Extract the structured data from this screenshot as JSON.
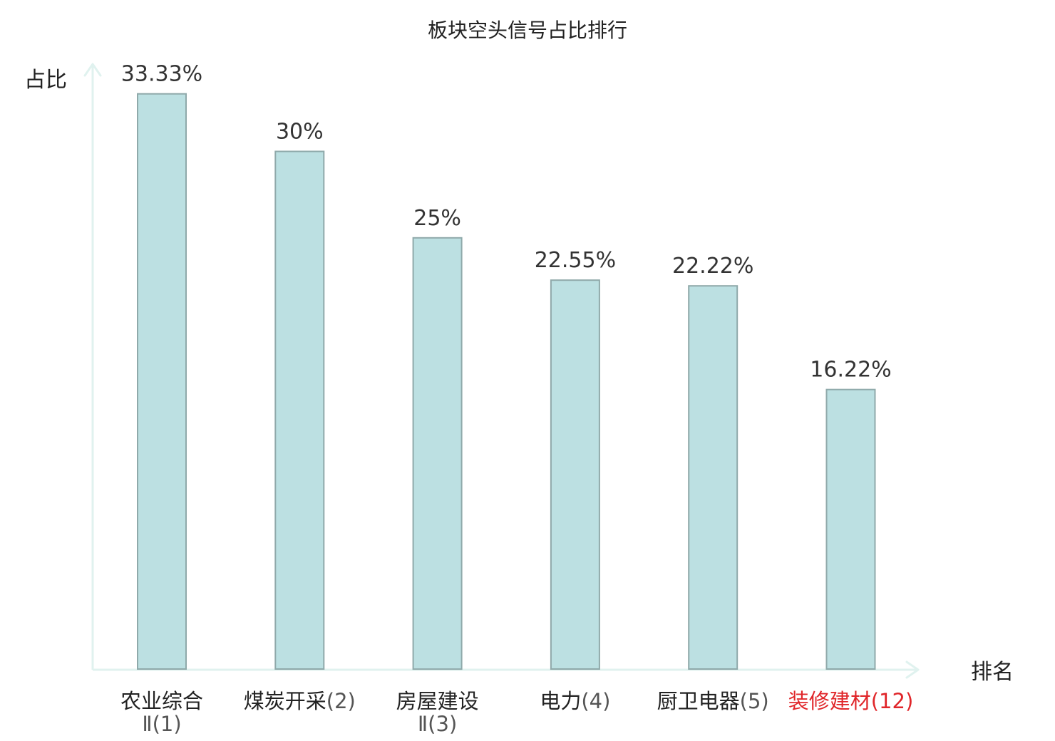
{
  "chart_data": {
    "type": "bar",
    "title": "板块空头信号占比排行",
    "xlabel": "排名",
    "ylabel": "占比",
    "ylim": [
      0,
      35
    ],
    "grid": false,
    "categories": [
      {
        "lines": [
          {
            "name": "农业综合",
            "rank": ""
          },
          {
            "name": "",
            "rank": "Ⅱ(1)"
          }
        ],
        "highlight": false
      },
      {
        "lines": [
          {
            "name": "煤炭开采",
            "rank": "(2)"
          }
        ],
        "highlight": false
      },
      {
        "lines": [
          {
            "name": "房屋建设",
            "rank": ""
          },
          {
            "name": "",
            "rank": "Ⅱ(3)"
          }
        ],
        "highlight": false
      },
      {
        "lines": [
          {
            "name": "电力",
            "rank": "(4)"
          }
        ],
        "highlight": false
      },
      {
        "lines": [
          {
            "name": "厨卫电器",
            "rank": "(5)"
          }
        ],
        "highlight": false
      },
      {
        "lines": [
          {
            "name": "装修建材",
            "rank": "(12)"
          }
        ],
        "highlight": true
      }
    ],
    "values": [
      33.33,
      30,
      25,
      22.55,
      22.22,
      16.22
    ],
    "value_labels": [
      "33.33%",
      "30%",
      "25%",
      "22.55%",
      "22.22%",
      "16.22%"
    ],
    "colors": {
      "bar_fill": "#bce0e2",
      "bar_stroke": "#8fa9aa",
      "axis": "#e0f2ef",
      "highlight_text": "#e0262a"
    }
  }
}
